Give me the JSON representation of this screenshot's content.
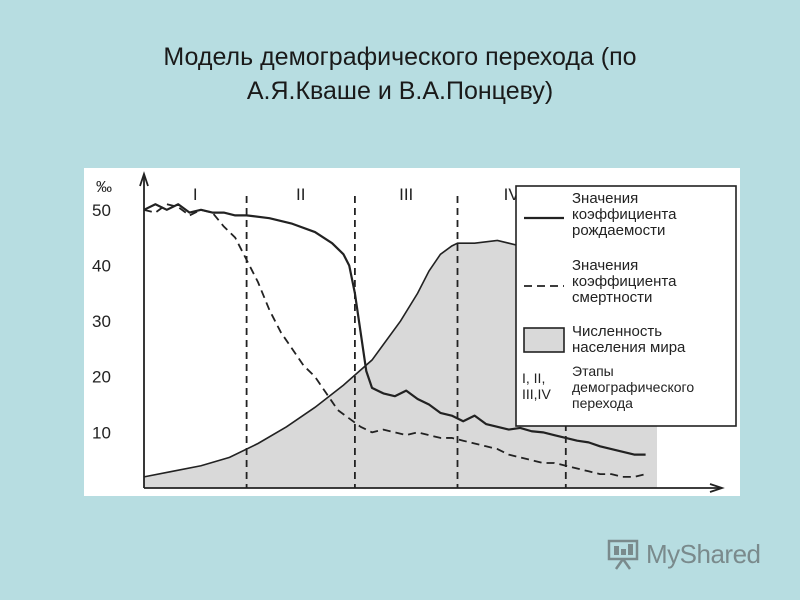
{
  "slide": {
    "title_line1": "Модель демографического перехода (по",
    "title_line2": "А.Я.Кваше и В.А.Понцеву)"
  },
  "chart_data": {
    "type": "line",
    "ylabel": "‰",
    "ylim": [
      0,
      55
    ],
    "xlim": [
      0,
      100
    ],
    "yticks": [
      10,
      20,
      30,
      40,
      50
    ],
    "stages": [
      {
        "label": "I",
        "x_start": 0,
        "x_end": 18
      },
      {
        "label": "II",
        "x_start": 18,
        "x_end": 37
      },
      {
        "label": "III",
        "x_start": 37,
        "x_end": 55
      },
      {
        "label": "IV",
        "x_start": 55,
        "x_end": 74
      }
    ],
    "stage_boundaries": [
      18,
      37,
      55,
      74
    ],
    "series": [
      {
        "name": "Значения коэффициента рождаемости",
        "style": "solid",
        "x": [
          0,
          2,
          4,
          6,
          8,
          10,
          12,
          14,
          16,
          18,
          22,
          26,
          30,
          33,
          35,
          36,
          37,
          38,
          39,
          40,
          42,
          44,
          46,
          48,
          50,
          52,
          54,
          56,
          58,
          60,
          62,
          64,
          66,
          68,
          70,
          72,
          74,
          76,
          78,
          80,
          82,
          84,
          86,
          88
        ],
        "values": [
          50,
          51,
          50,
          51,
          49.5,
          50,
          49.5,
          49.5,
          49,
          49,
          48.5,
          47.5,
          46,
          44,
          42,
          40,
          35,
          28,
          21,
          18,
          17,
          16.5,
          17.5,
          16,
          15,
          13.5,
          13,
          12,
          13,
          11.5,
          11,
          10.5,
          10.8,
          10.2,
          10,
          9.5,
          9,
          8.5,
          8.2,
          7.5,
          7,
          6.5,
          6,
          6
        ]
      },
      {
        "name": "Значения коэффициента смертности",
        "style": "dashed",
        "x": [
          0,
          2,
          4,
          6,
          8,
          10,
          12,
          14,
          16,
          18,
          20,
          22,
          24,
          26,
          28,
          30,
          32,
          34,
          36,
          38,
          40,
          42,
          44,
          46,
          48,
          50,
          52,
          54,
          56,
          58,
          60,
          62,
          64,
          66,
          68,
          70,
          72,
          74,
          76,
          78,
          80,
          82,
          84,
          86,
          88
        ],
        "values": [
          50,
          49.5,
          51,
          50.5,
          49,
          50,
          49.5,
          47,
          45,
          41,
          37,
          32,
          28,
          25,
          22,
          20,
          17,
          14,
          12.5,
          11,
          10,
          10.5,
          10,
          9.5,
          10,
          9.5,
          9,
          9,
          8.5,
          8,
          7.5,
          7,
          6,
          5.5,
          5,
          4.5,
          4.5,
          4,
          3.5,
          3,
          2.5,
          2.5,
          2,
          2,
          2.5
        ]
      }
    ],
    "population_area": {
      "name": "Численность населения мира",
      "x": [
        0,
        5,
        10,
        15,
        20,
        25,
        30,
        35,
        40,
        45,
        48,
        50,
        52,
        54,
        55,
        58,
        62,
        66,
        70,
        74,
        74,
        90
      ],
      "values": [
        2,
        3,
        4,
        5.5,
        8,
        11,
        14.5,
        18.5,
        23,
        30,
        35,
        39,
        42,
        43.5,
        44,
        44,
        44.5,
        43.5,
        42.5,
        42,
        42,
        42
      ]
    },
    "legend": {
      "placement": "right",
      "birth": "Значения коэффициента рождаемости",
      "death": "Значения коэффициента смертности",
      "population": "Численность населения мира",
      "stages": "I, II, III,IV Этапы демографического перехода"
    },
    "legend_lines": {
      "birth": [
        "Значения",
        "коэффициента",
        "рождаемости"
      ],
      "death": [
        "Значения",
        "коэффициента",
        "смертности"
      ],
      "population": [
        "Численность",
        "населения мира"
      ],
      "stages_symbol": [
        "I, II,",
        "III,IV"
      ],
      "stages_text": [
        "Этапы",
        "демографического",
        "перехода"
      ]
    }
  },
  "watermark": {
    "brand": "MyShared",
    "icon": "projector-screen-icon"
  }
}
